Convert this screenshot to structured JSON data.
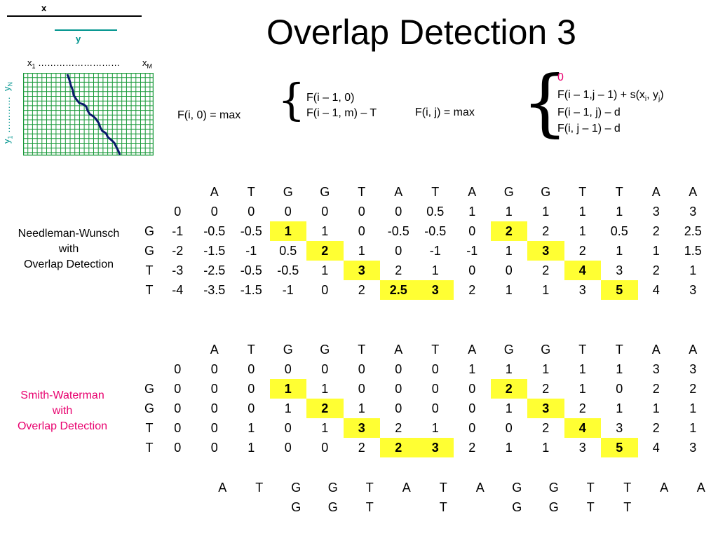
{
  "title": "Overlap Detection 3",
  "diagram": {
    "x_label": "x",
    "y_label": "y",
    "x_start": "x",
    "x_start_sub": "1",
    "x_end": "x",
    "x_end_sub": "M",
    "x_dots": "………………………",
    "y_start": "y",
    "y_start_sub": "1",
    "y_end": "y",
    "y_end_sub": "N",
    "y_dots": "…………"
  },
  "recurrence_boundary": {
    "lhs": "F(i, 0)  =  max",
    "cases": [
      "F(i – 1, 0)",
      "F(i – 1, m) – T"
    ]
  },
  "recurrence_main": {
    "lhs": "F(i, j)  =  max",
    "case_zero": "0",
    "case_diag_prefix": "F(i – 1,j – 1) + s(x",
    "case_diag_sub_i": "i",
    "case_diag_mid": ", y",
    "case_diag_sub_j": "j",
    "case_diag_suffix": ")",
    "case_up": "F(i – 1, j) – d",
    "case_left": "F(i, j – 1) – d"
  },
  "nw": {
    "label_line1": "Needleman-Wunsch",
    "label_line2": "with",
    "label_line3": "Overlap Detection",
    "header": [
      "",
      "",
      "A",
      "T",
      "G",
      "G",
      "T",
      "A",
      "T",
      "A",
      "G",
      "G",
      "T",
      "T",
      "A",
      "A"
    ],
    "rows": [
      {
        "h": "",
        "cells": [
          "0",
          "0",
          "0",
          "0",
          "0",
          "0",
          "0",
          "0.5",
          "1",
          "1",
          "1",
          "1",
          "1",
          "3",
          "3"
        ]
      },
      {
        "h": "G",
        "cells": [
          "-1",
          "-0.5",
          "-0.5",
          "1",
          "1",
          "0",
          "-0.5",
          "-0.5",
          "0",
          "2",
          "2",
          "1",
          "0.5",
          "2",
          "2.5"
        ]
      },
      {
        "h": "G",
        "cells": [
          "-2",
          "-1.5",
          "-1",
          "0.5",
          "2",
          "1",
          "0",
          "-1",
          "-1",
          "1",
          "3",
          "2",
          "1",
          "1",
          "1.5"
        ]
      },
      {
        "h": "T",
        "cells": [
          "-3",
          "-2.5",
          "-0.5",
          "-0.5",
          "1",
          "3",
          "2",
          "1",
          "0",
          "0",
          "2",
          "4",
          "3",
          "2",
          "1"
        ]
      },
      {
        "h": "T",
        "cells": [
          "-4",
          "-3.5",
          "-1.5",
          "-1",
          "0",
          "2",
          "2.5",
          "3",
          "2",
          "1",
          "1",
          "3",
          "5",
          "4",
          "3"
        ]
      }
    ],
    "highlight": [
      [
        1,
        3
      ],
      [
        1,
        9
      ],
      [
        2,
        4
      ],
      [
        2,
        10
      ],
      [
        3,
        5
      ],
      [
        3,
        11
      ],
      [
        4,
        6
      ],
      [
        4,
        7
      ],
      [
        4,
        12
      ]
    ]
  },
  "sw": {
    "label_line1": "Smith-Waterman",
    "label_line2": "with",
    "label_line3": "Overlap Detection",
    "header": [
      "",
      "",
      "A",
      "T",
      "G",
      "G",
      "T",
      "A",
      "T",
      "A",
      "G",
      "G",
      "T",
      "T",
      "A",
      "A"
    ],
    "rows": [
      {
        "h": "",
        "cells": [
          "0",
          "0",
          "0",
          "0",
          "0",
          "0",
          "0",
          "0",
          "1",
          "1",
          "1",
          "1",
          "1",
          "3",
          "3"
        ]
      },
      {
        "h": "G",
        "cells": [
          "0",
          "0",
          "0",
          "1",
          "1",
          "0",
          "0",
          "0",
          "0",
          "2",
          "2",
          "1",
          "0",
          "2",
          "2"
        ]
      },
      {
        "h": "G",
        "cells": [
          "0",
          "0",
          "0",
          "1",
          "2",
          "1",
          "0",
          "0",
          "0",
          "1",
          "3",
          "2",
          "1",
          "1",
          "1"
        ]
      },
      {
        "h": "T",
        "cells": [
          "0",
          "0",
          "1",
          "0",
          "1",
          "3",
          "2",
          "1",
          "0",
          "0",
          "2",
          "4",
          "3",
          "2",
          "1"
        ]
      },
      {
        "h": "T",
        "cells": [
          "0",
          "0",
          "1",
          "0",
          "0",
          "2",
          "2",
          "3",
          "2",
          "1",
          "1",
          "3",
          "5",
          "4",
          "3"
        ]
      }
    ],
    "highlight": [
      [
        1,
        3
      ],
      [
        1,
        9
      ],
      [
        2,
        4
      ],
      [
        2,
        10
      ],
      [
        3,
        5
      ],
      [
        3,
        11
      ],
      [
        4,
        6
      ],
      [
        4,
        7
      ],
      [
        4,
        12
      ]
    ]
  },
  "alignment": {
    "top": [
      "A",
      "T",
      "G",
      "G",
      "T",
      "A",
      "T",
      "A",
      "G",
      "G",
      "T",
      "T",
      "A",
      "A"
    ],
    "bottom": [
      "",
      "",
      "G",
      "G",
      "T",
      "",
      "T",
      "",
      "G",
      "G",
      "T",
      "T",
      "",
      ""
    ]
  }
}
